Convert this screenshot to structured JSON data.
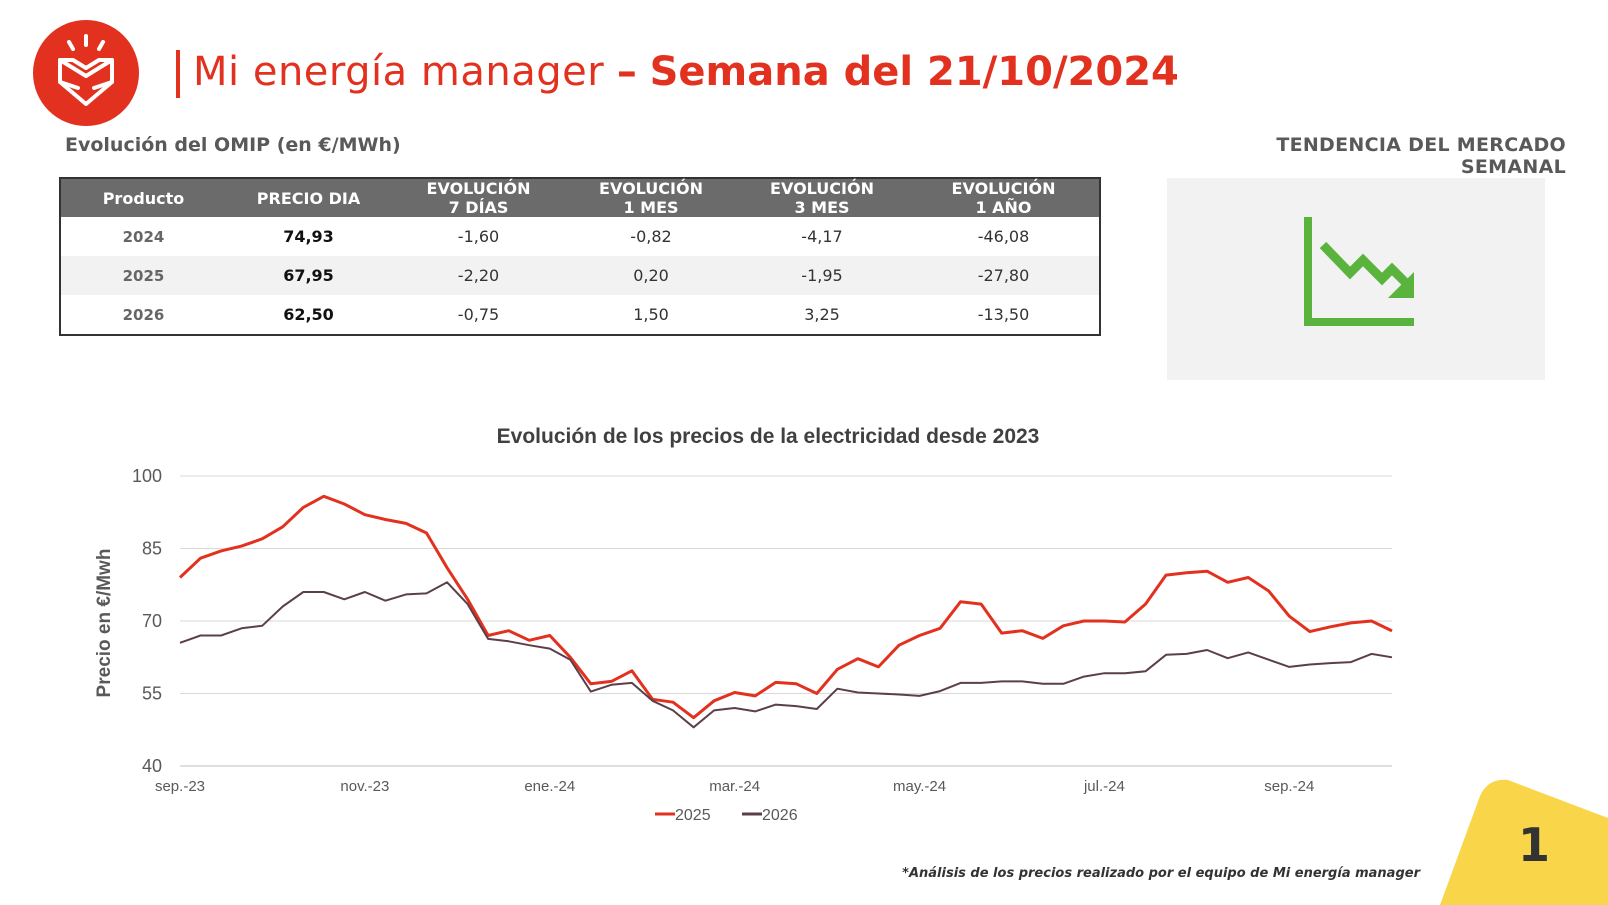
{
  "header": {
    "brand": "Mi energía manager",
    "dash": "–",
    "week_label": "Semana del 21/10/2024"
  },
  "omip": {
    "title": "Evolución del OMIP (en €/MWh)",
    "columns": [
      "Producto",
      "PRECIO DIA",
      "EVOLUCIÓN\n7 DÍAS",
      "EVOLUCIÓN\n1 MES",
      "EVOLUCIÓN\n3 MES",
      "EVOLUCIÓN\n1 AÑO"
    ],
    "rows": [
      [
        "2024",
        "74,93",
        "-1,60",
        "-0,82",
        "-4,17",
        "-46,08"
      ],
      [
        "2025",
        "67,95",
        "-2,20",
        "0,20",
        "-1,95",
        "-27,80"
      ],
      [
        "2026",
        "62,50",
        "-0,75",
        "1,50",
        "3,25",
        "-13,50"
      ]
    ]
  },
  "trend": {
    "title": "TENDENCIA DEL MERCADO SEMANAL",
    "icon": "downtrend-chart-icon",
    "color": "#5ab33c"
  },
  "colors": {
    "accent": "#e2321f",
    "series_2026": "#5b3f4b",
    "corner": "#f9d54a"
  },
  "chart_data": {
    "type": "line",
    "title": "Evolución de los precios de la electricidad desde 2023",
    "xlabel": "",
    "ylabel": "Precio en €/Mwh",
    "ylim": [
      40,
      100
    ],
    "yticks": [
      40,
      55,
      70,
      85,
      100
    ],
    "x_tick_labels": [
      "sep.-23",
      "nov.-23",
      "ene.-24",
      "mar.-24",
      "may.-24",
      "jul.-24",
      "sep.-24"
    ],
    "x_tick_index": [
      0,
      9,
      18,
      27,
      36,
      45,
      54
    ],
    "grid": true,
    "legend_position": "bottom-center",
    "series": [
      {
        "name": "2025",
        "color": "#e2321f",
        "values": [
          79,
          83,
          84.5,
          85.5,
          87,
          89.5,
          93.5,
          95.8,
          94.2,
          92,
          91,
          90.2,
          88.2,
          81,
          74.5,
          67,
          68,
          66,
          67,
          62.5,
          57,
          57.5,
          59.7,
          53.8,
          53.2,
          50,
          53.5,
          55.2,
          54.5,
          57.3,
          57,
          55,
          60,
          62.2,
          60.5,
          65,
          67,
          68.5,
          74,
          73.5,
          67.5,
          68,
          66.4,
          69,
          70,
          70,
          69.8,
          73.5,
          79.5,
          80,
          80.3,
          78,
          79,
          76.2,
          71,
          67.8,
          68.8,
          69.6,
          70,
          67.95
        ]
      },
      {
        "name": "2026",
        "color": "#5b3f4b",
        "values": [
          65.5,
          67,
          67,
          68.5,
          69,
          73,
          76,
          76,
          74.5,
          76,
          74.2,
          75.5,
          75.7,
          78,
          73.5,
          66.3,
          65.8,
          65,
          64.3,
          62,
          55.4,
          56.8,
          57.2,
          53.5,
          51.5,
          48,
          51.5,
          52,
          51.3,
          52.7,
          52.4,
          51.8,
          56,
          55.2,
          55,
          54.8,
          54.5,
          55.5,
          57.2,
          57.2,
          57.5,
          57.5,
          57,
          57,
          58.5,
          59.2,
          59.2,
          59.6,
          63,
          63.2,
          64,
          62.3,
          63.5,
          62,
          60.5,
          61,
          61.3,
          61.5,
          63.2,
          62.5
        ]
      }
    ]
  },
  "footnote": "*Análisis de los precios realizado por el equipo de Mi energía manager",
  "page_number": "1"
}
